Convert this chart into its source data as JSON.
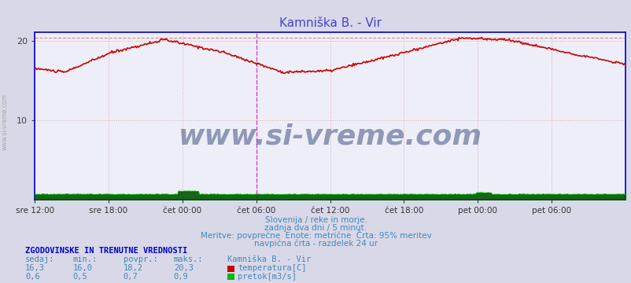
{
  "title": "Kamniška B. - Vir",
  "title_color": "#4444cc",
  "bg_color": "#d8d8e8",
  "plot_bg_color": "#eeeef8",
  "grid_color": "#ddaaaa",
  "xlabel_ticks": [
    "sre 12:00",
    "sre 18:00",
    "čet 00:00",
    "čet 06:00",
    "čet 12:00",
    "čet 18:00",
    "pet 00:00",
    "pet 06:00"
  ],
  "ylim": [
    0,
    21
  ],
  "yticks": [
    10,
    20
  ],
  "temp_color": "#cc0000",
  "flow_color": "#00bb00",
  "flow_fill_color": "#005500",
  "hline_color": "#dd8888",
  "hline_y": 20.3,
  "vline_color": "#cc44cc",
  "border_color": "#0000cc",
  "subtitle1": "Slovenija / reke in morje.",
  "subtitle2": "zadnja dva dni / 5 minut.",
  "subtitle3": "Meritve: povprečne  Enote: metrične  Črta: 95% meritev",
  "subtitle4": "navpična črta - razdelek 24 ur",
  "subtitle_color": "#4488bb",
  "table_header": "ZGODOVINSKE IN TRENUTNE VREDNOSTI",
  "table_header_color": "#0000cc",
  "col_headers": [
    "sedaj:",
    "min.:",
    "povpr.:",
    "maks.:",
    "Kamniška B. - Vir"
  ],
  "row1": [
    "16,3",
    "16,0",
    "18,2",
    "20,3",
    "temperatura[C]"
  ],
  "row2": [
    "0,6",
    "0,5",
    "0,7",
    "0,9",
    "pretok[m3/s]"
  ],
  "table_color": "#4488bb",
  "watermark": "www.si-vreme.com",
  "watermark_color": "#334477",
  "side_text": "www.si-vreme.com",
  "side_text_color": "#aaaaaa"
}
